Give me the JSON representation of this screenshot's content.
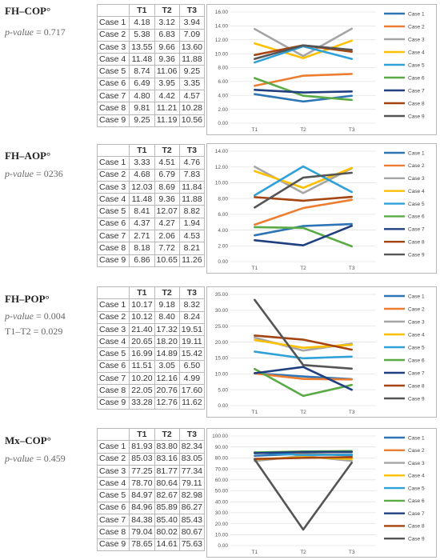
{
  "chart_data": [
    {
      "type": "line",
      "title": "FH–COP°",
      "stat": {
        "label": "p-value",
        "value": "= 0.717"
      },
      "extra_stat": "",
      "x": [
        "T1",
        "T2",
        "T3"
      ],
      "ylim": [
        0,
        16
      ],
      "yticks": [
        "0.00",
        "2.00",
        "4.00",
        "6.00",
        "8.00",
        "10.00",
        "12.00",
        "14.00",
        "16.00"
      ],
      "series": [
        {
          "name": "Case 1",
          "values": [
            4.18,
            3.12,
            3.94
          ],
          "color": "#2e75b6"
        },
        {
          "name": "Case 2",
          "values": [
            5.38,
            6.83,
            7.09
          ],
          "color": "#ed7d31"
        },
        {
          "name": "Case 3",
          "values": [
            13.55,
            9.66,
            13.6
          ],
          "color": "#a5a5a5"
        },
        {
          "name": "Case 4",
          "values": [
            11.48,
            9.36,
            11.88
          ],
          "color": "#ffc000"
        },
        {
          "name": "Case 5",
          "values": [
            8.74,
            11.06,
            9.25
          ],
          "color": "#2ea1d9"
        },
        {
          "name": "Case 6",
          "values": [
            6.49,
            3.95,
            3.35
          ],
          "color": "#5aaa46"
        },
        {
          "name": "Case 7",
          "values": [
            4.8,
            4.42,
            4.57
          ],
          "color": "#1f3f80"
        },
        {
          "name": "Case 8",
          "values": [
            9.81,
            11.21,
            10.28
          ],
          "color": "#a5440f"
        },
        {
          "name": "Case 9",
          "values": [
            9.25,
            11.19,
            10.56
          ],
          "color": "#555555"
        }
      ],
      "table": [
        [
          "4.18",
          "3.12",
          "3.94"
        ],
        [
          "5.38",
          "6.83",
          "7.09"
        ],
        [
          "13.55",
          "9.66",
          "13.60"
        ],
        [
          "11.48",
          "9.36",
          "11.88"
        ],
        [
          "8.74",
          "11.06",
          "9.25"
        ],
        [
          "6.49",
          "3.95",
          "3.35"
        ],
        [
          "4.80",
          "4.42",
          "4.57"
        ],
        [
          "9.81",
          "11.21",
          "10.28"
        ],
        [
          "9.25",
          "11.19",
          "10.56"
        ]
      ]
    },
    {
      "type": "line",
      "title": "FH–AOP°",
      "stat": {
        "label": "p-value",
        "value": "= 0236"
      },
      "extra_stat": "",
      "x": [
        "T1",
        "T2",
        "T3"
      ],
      "ylim": [
        0,
        14
      ],
      "yticks": [
        "0.00",
        "2.00",
        "4.00",
        "6.00",
        "8.00",
        "10.00",
        "12.00",
        "14.00"
      ],
      "series": [
        {
          "name": "Case 1",
          "values": [
            3.33,
            4.51,
            4.76
          ],
          "color": "#2e75b6"
        },
        {
          "name": "Case 2",
          "values": [
            4.68,
            6.79,
            7.83
          ],
          "color": "#ed7d31"
        },
        {
          "name": "Case 3",
          "values": [
            12.03,
            8.69,
            11.84
          ],
          "color": "#a5a5a5"
        },
        {
          "name": "Case 4",
          "values": [
            11.48,
            9.36,
            11.88
          ],
          "color": "#ffc000"
        },
        {
          "name": "Case 5",
          "values": [
            8.41,
            12.07,
            8.82
          ],
          "color": "#2ea1d9"
        },
        {
          "name": "Case 6",
          "values": [
            4.37,
            4.27,
            1.94
          ],
          "color": "#5aaa46"
        },
        {
          "name": "Case 7",
          "values": [
            2.71,
            2.06,
            4.53
          ],
          "color": "#1f3f80"
        },
        {
          "name": "Case 8",
          "values": [
            8.18,
            7.72,
            8.21
          ],
          "color": "#a5440f"
        },
        {
          "name": "Case 9",
          "values": [
            6.86,
            10.65,
            11.26
          ],
          "color": "#555555"
        }
      ],
      "table": [
        [
          "3.33",
          "4.51",
          "4.76"
        ],
        [
          "4.68",
          "6.79",
          "7.83"
        ],
        [
          "12.03",
          "8.69",
          "11.84"
        ],
        [
          "11.48",
          "9.36",
          "11.88"
        ],
        [
          "8.41",
          "12.07",
          "8.82"
        ],
        [
          "4.37",
          "4.27",
          "1.94"
        ],
        [
          "2.71",
          "2.06",
          "4.53"
        ],
        [
          "8.18",
          "7.72",
          "8.21"
        ],
        [
          "6.86",
          "10.65",
          "11.26"
        ]
      ]
    },
    {
      "type": "line",
      "title": "FH–POP°",
      "stat": {
        "label": "p-value",
        "value": "= 0.004"
      },
      "extra_stat": "T1–T2 = 0.029",
      "x": [
        "T1",
        "T2",
        "T3"
      ],
      "ylim": [
        0,
        35
      ],
      "yticks": [
        "0.00",
        "5.00",
        "10.00",
        "15.00",
        "20.00",
        "25.00",
        "30.00",
        "35.00"
      ],
      "series": [
        {
          "name": "Case 1",
          "values": [
            10.17,
            9.18,
            8.32
          ],
          "color": "#2e75b6"
        },
        {
          "name": "Case 2",
          "values": [
            10.12,
            8.4,
            8.24
          ],
          "color": "#ed7d31"
        },
        {
          "name": "Case 3",
          "values": [
            21.4,
            17.32,
            19.51
          ],
          "color": "#a5a5a5"
        },
        {
          "name": "Case 4",
          "values": [
            20.65,
            18.2,
            19.11
          ],
          "color": "#ffc000"
        },
        {
          "name": "Case 5",
          "values": [
            16.99,
            14.89,
            15.42
          ],
          "color": "#2ea1d9"
        },
        {
          "name": "Case 6",
          "values": [
            11.51,
            3.05,
            6.5
          ],
          "color": "#5aaa46"
        },
        {
          "name": "Case 7",
          "values": [
            10.2,
            12.16,
            4.99
          ],
          "color": "#1f3f80"
        },
        {
          "name": "Case 8",
          "values": [
            22.05,
            20.76,
            17.6
          ],
          "color": "#a5440f"
        },
        {
          "name": "Case 9",
          "values": [
            33.28,
            12.76,
            11.62
          ],
          "color": "#555555"
        }
      ],
      "table": [
        [
          "10.17",
          "9.18",
          "8.32"
        ],
        [
          "10.12",
          "8.40",
          "8.24"
        ],
        [
          "21.40",
          "17.32",
          "19.51"
        ],
        [
          "20.65",
          "18.20",
          "19.11"
        ],
        [
          "16.99",
          "14.89",
          "15.42"
        ],
        [
          "11.51",
          "3.05",
          "6.50"
        ],
        [
          "10.20",
          "12.16",
          "4.99"
        ],
        [
          "22.05",
          "20.76",
          "17.60"
        ],
        [
          "33.28",
          "12.76",
          "11.62"
        ]
      ]
    },
    {
      "type": "line",
      "title": "Mx–COP°",
      "stat": {
        "label": "p-value",
        "value": "= 0.459"
      },
      "extra_stat": "",
      "x": [
        "T1",
        "T2",
        "T3"
      ],
      "ylim": [
        0,
        100
      ],
      "yticks": [
        "0.00",
        "10.00",
        "20.00",
        "30.00",
        "40.00",
        "50.00",
        "60.00",
        "70.00",
        "80.00",
        "90.00",
        "100.00"
      ],
      "series": [
        {
          "name": "Case 1",
          "values": [
            81.93,
            83.8,
            82.34
          ],
          "color": "#2e75b6"
        },
        {
          "name": "Case 2",
          "values": [
            85.03,
            83.16,
            83.05
          ],
          "color": "#ed7d31"
        },
        {
          "name": "Case 3",
          "values": [
            77.25,
            81.77,
            77.34
          ],
          "color": "#a5a5a5"
        },
        {
          "name": "Case 4",
          "values": [
            78.7,
            80.64,
            79.11
          ],
          "color": "#ffc000"
        },
        {
          "name": "Case 5",
          "values": [
            84.97,
            82.67,
            82.98
          ],
          "color": "#2ea1d9"
        },
        {
          "name": "Case 6",
          "values": [
            84.96,
            85.89,
            86.27
          ],
          "color": "#5aaa46"
        },
        {
          "name": "Case 7",
          "values": [
            84.38,
            85.4,
            85.43
          ],
          "color": "#1f3f80"
        },
        {
          "name": "Case 8",
          "values": [
            79.04,
            80.02,
            80.67
          ],
          "color": "#a5440f"
        },
        {
          "name": "Case 9",
          "values": [
            78.65,
            14.61,
            75.63
          ],
          "color": "#555555"
        }
      ],
      "table": [
        [
          "81.93",
          "83.80",
          "82.34"
        ],
        [
          "85.03",
          "83.16",
          "83.05"
        ],
        [
          "77.25",
          "81.77",
          "77.34"
        ],
        [
          "78.70",
          "80.64",
          "79.11"
        ],
        [
          "84.97",
          "82.67",
          "82.98"
        ],
        [
          "84.96",
          "85.89",
          "86.27"
        ],
        [
          "84.38",
          "85.40",
          "85.43"
        ],
        [
          "79.04",
          "80.02",
          "80.67"
        ],
        [
          "78.65",
          "14.61",
          "75.63"
        ]
      ]
    }
  ]
}
